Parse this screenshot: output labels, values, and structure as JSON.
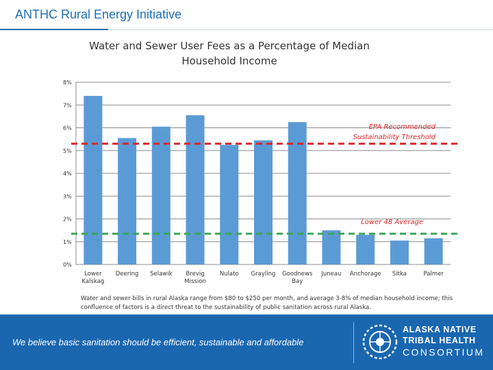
{
  "slide": {
    "title": "ANTHC Rural Energy Initiative"
  },
  "chart_data": {
    "type": "bar",
    "title": "Water and Sewer User Fees as a Percentage of Median Household Income",
    "categories": [
      "Lower Kalskag",
      "Deering",
      "Selawik",
      "Brevig Mission",
      "Nulato",
      "Grayling",
      "Goodnews Bay",
      "Juneau",
      "Anchorage",
      "Sitka",
      "Palmer"
    ],
    "values": [
      7.4,
      5.55,
      6.05,
      6.55,
      5.25,
      5.45,
      6.25,
      1.5,
      1.3,
      1.05,
      1.15
    ],
    "bar_color": "#5b9bd5",
    "ylim": [
      0,
      8
    ],
    "yticks": [
      0,
      1,
      2,
      3,
      4,
      5,
      6,
      7,
      8
    ],
    "ytick_labels": [
      "0%",
      "1%",
      "2%",
      "3%",
      "4%",
      "5%",
      "6%",
      "7%",
      "8%"
    ],
    "xlabel": "",
    "ylabel": "",
    "grid": true,
    "reference_lines": [
      {
        "name": "EPA Recommended Sustainability Threshold",
        "value": 5.3,
        "color": "#d9262b",
        "style": "dashed"
      },
      {
        "name": "Lower 48 Average",
        "value": 1.35,
        "color": "#3aa655",
        "style": "dashed"
      }
    ],
    "annotations": [
      {
        "text_lines": [
          "EPA Recommended",
          "Sustainability Threshold"
        ],
        "color": "#d9262b"
      },
      {
        "text_lines": [
          "Lower 48 Average"
        ],
        "color": "#d9262b"
      }
    ]
  },
  "caption": "Water and sewer bills in rural Alaska range from $80 to $250 per month, and average 3-8% of median household income; this confluence of factors is a direct threat to the sustainability of public sanitation across rural Alaska.",
  "footer": {
    "tagline": "We believe basic sanitation should be efficient, sustainable and affordable",
    "logo": {
      "line1": "ALASKA NATIVE",
      "line2": "TRIBAL HEALTH",
      "line3": "CONSORTIUM"
    },
    "background": "#1a67b0"
  }
}
